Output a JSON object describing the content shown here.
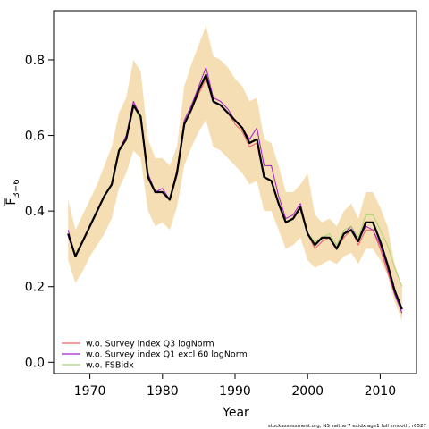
{
  "chart_data": {
    "type": "line",
    "xlabel": "Year",
    "ylabel": "F",
    "ylabel_sub": "3−6",
    "xlim": [
      1965,
      2015
    ],
    "ylim": [
      -0.03,
      0.93
    ],
    "xticks": [
      1970,
      1980,
      1990,
      2000,
      2010
    ],
    "yticks": [
      0.0,
      0.2,
      0.4,
      0.6,
      0.8
    ],
    "xtick_labels": [
      "1970",
      "1980",
      "1990",
      "2000",
      "2010"
    ],
    "ytick_labels": [
      "0.0",
      "0.2",
      "0.4",
      "0.6",
      "0.8"
    ],
    "grid": false,
    "legend_position": "bottom-left",
    "years": [
      1967,
      1968,
      1969,
      1970,
      1971,
      1972,
      1973,
      1974,
      1975,
      1976,
      1977,
      1978,
      1979,
      1980,
      1981,
      1982,
      1983,
      1984,
      1985,
      1986,
      1987,
      1988,
      1989,
      1990,
      1991,
      1992,
      1993,
      1994,
      1995,
      1996,
      1997,
      1998,
      1999,
      2000,
      2001,
      2002,
      2003,
      2004,
      2005,
      2006,
      2007,
      2008,
      2009,
      2010,
      2011,
      2012,
      2013
    ],
    "band": {
      "color": "#f5deb3",
      "upper": [
        0.43,
        0.35,
        0.39,
        0.43,
        0.47,
        0.52,
        0.57,
        0.66,
        0.7,
        0.8,
        0.77,
        0.59,
        0.54,
        0.54,
        0.52,
        0.57,
        0.73,
        0.79,
        0.84,
        0.89,
        0.81,
        0.8,
        0.78,
        0.75,
        0.73,
        0.69,
        0.7,
        0.59,
        0.58,
        0.52,
        0.45,
        0.45,
        0.47,
        0.5,
        0.39,
        0.37,
        0.38,
        0.36,
        0.4,
        0.42,
        0.38,
        0.45,
        0.45,
        0.41,
        0.36,
        0.26,
        0.2
      ],
      "lower": [
        0.27,
        0.21,
        0.24,
        0.28,
        0.31,
        0.34,
        0.38,
        0.46,
        0.5,
        0.56,
        0.54,
        0.4,
        0.36,
        0.37,
        0.35,
        0.41,
        0.52,
        0.57,
        0.61,
        0.64,
        0.57,
        0.56,
        0.54,
        0.52,
        0.5,
        0.47,
        0.48,
        0.4,
        0.4,
        0.35,
        0.3,
        0.31,
        0.33,
        0.27,
        0.25,
        0.26,
        0.27,
        0.26,
        0.28,
        0.29,
        0.26,
        0.3,
        0.3,
        0.27,
        0.23,
        0.16,
        0.11
      ]
    },
    "series": [
      {
        "color": "#000000",
        "width": 2.2,
        "values": [
          0.34,
          0.28,
          0.32,
          0.36,
          0.4,
          0.44,
          0.47,
          0.56,
          0.59,
          0.68,
          0.65,
          0.49,
          0.45,
          0.45,
          0.43,
          0.5,
          0.63,
          0.67,
          0.72,
          0.76,
          0.69,
          0.68,
          0.66,
          0.64,
          0.62,
          0.58,
          0.59,
          0.49,
          0.48,
          0.42,
          0.37,
          0.38,
          0.41,
          0.34,
          0.31,
          0.33,
          0.33,
          0.3,
          0.34,
          0.35,
          0.32,
          0.37,
          0.37,
          0.32,
          0.26,
          0.19,
          0.14
        ]
      },
      {
        "name": "w.o. Survey index Q3 logNorm",
        "color": "#f0606a",
        "width": 1,
        "values": [
          0.34,
          0.28,
          0.32,
          0.36,
          0.4,
          0.44,
          0.47,
          0.56,
          0.59,
          0.68,
          0.64,
          0.49,
          0.45,
          0.45,
          0.43,
          0.5,
          0.63,
          0.67,
          0.71,
          0.75,
          0.69,
          0.68,
          0.66,
          0.63,
          0.61,
          0.57,
          0.58,
          0.49,
          0.48,
          0.42,
          0.37,
          0.38,
          0.41,
          0.34,
          0.3,
          0.32,
          0.33,
          0.3,
          0.33,
          0.35,
          0.31,
          0.35,
          0.35,
          0.3,
          0.24,
          0.18,
          0.13
        ]
      },
      {
        "name": "w.o. Survey index Q1 excl 60 logNorm",
        "color": "#a020c8",
        "width": 1,
        "values": [
          0.35,
          0.28,
          0.32,
          0.36,
          0.4,
          0.44,
          0.47,
          0.56,
          0.6,
          0.69,
          0.65,
          0.5,
          0.45,
          0.46,
          0.43,
          0.51,
          0.64,
          0.68,
          0.73,
          0.78,
          0.7,
          0.69,
          0.67,
          0.64,
          0.62,
          0.59,
          0.62,
          0.52,
          0.52,
          0.44,
          0.38,
          0.39,
          0.42,
          0.34,
          0.31,
          0.33,
          0.33,
          0.3,
          0.34,
          0.36,
          0.32,
          0.36,
          0.35,
          0.31,
          0.25,
          0.18,
          0.13
        ]
      },
      {
        "name": "w.o. FSBidx",
        "color": "#a8d870",
        "width": 1,
        "values": [
          0.34,
          0.28,
          0.32,
          0.36,
          0.4,
          0.44,
          0.47,
          0.56,
          0.59,
          0.68,
          0.64,
          0.49,
          0.45,
          0.45,
          0.43,
          0.5,
          0.63,
          0.67,
          0.72,
          0.76,
          0.69,
          0.68,
          0.66,
          0.64,
          0.62,
          0.58,
          0.59,
          0.49,
          0.48,
          0.42,
          0.37,
          0.38,
          0.41,
          0.34,
          0.32,
          0.33,
          0.34,
          0.31,
          0.35,
          0.36,
          0.33,
          0.39,
          0.39,
          0.35,
          0.31,
          0.25,
          0.2
        ]
      }
    ],
    "legend": [
      {
        "label": "w.o. Survey index Q3 logNorm",
        "color": "#f0606a"
      },
      {
        "label": "w.o. Survey index Q1 excl 60 logNorm",
        "color": "#a020c8"
      },
      {
        "label": "w.o. FSBidx",
        "color": "#a8d870"
      }
    ],
    "credit": "stockassessment.org, NS saithe 7 exidx age1 full smooth, r6527"
  }
}
